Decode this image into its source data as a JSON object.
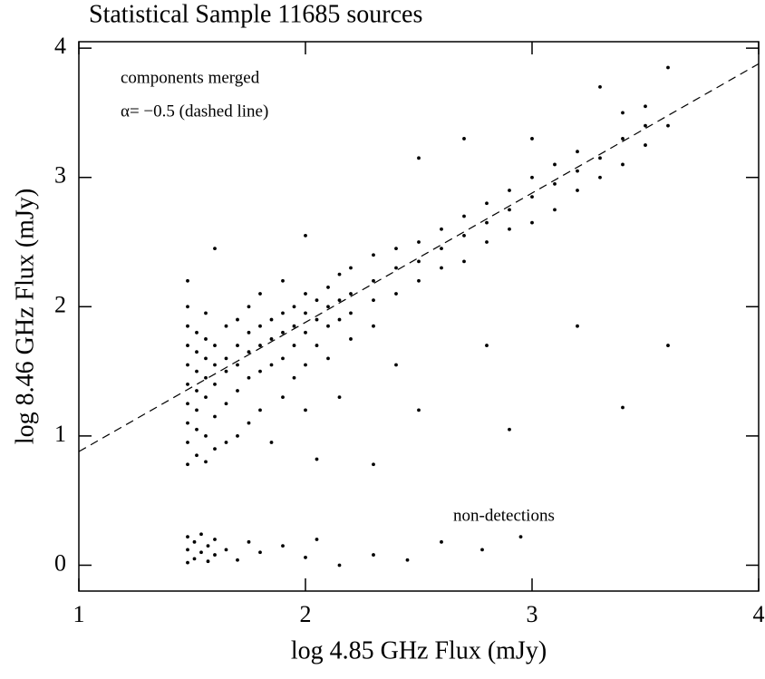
{
  "chart_data": {
    "type": "scatter",
    "title": "Statistical Sample 11685 sources",
    "x_label": "log 4.85 GHz Flux (mJy)",
    "y_label": "log 8.46 GHz Flux (mJy)",
    "annotations": [
      "components merged",
      "α= −0.5 (dashed line)",
      "non-detections"
    ],
    "xlim": [
      1,
      4
    ],
    "ylim": [
      -0.2,
      4.05
    ],
    "xticks": [
      1,
      2,
      3,
      4
    ],
    "yticks": [
      0,
      1,
      2,
      3,
      4
    ],
    "reference_line": {
      "x": [
        1,
        4
      ],
      "y": [
        0.879,
        3.879
      ],
      "color": "#000000",
      "dashed": true
    },
    "series": [
      {
        "color": "#000000",
        "x": [
          1.48,
          1.48,
          1.48,
          1.48,
          1.48,
          1.48,
          1.48,
          1.48,
          1.48,
          1.48,
          1.52,
          1.52,
          1.52,
          1.52,
          1.52,
          1.52,
          1.52,
          1.56,
          1.56,
          1.56,
          1.56,
          1.56,
          1.56,
          1.56,
          1.6,
          1.6,
          1.6,
          1.6,
          1.6,
          1.6,
          1.65,
          1.65,
          1.65,
          1.65,
          1.65,
          1.7,
          1.7,
          1.7,
          1.7,
          1.7,
          1.75,
          1.75,
          1.75,
          1.75,
          1.75,
          1.8,
          1.8,
          1.8,
          1.8,
          1.8,
          1.85,
          1.85,
          1.85,
          1.85,
          1.9,
          1.9,
          1.9,
          1.9,
          1.9,
          1.95,
          1.95,
          1.95,
          1.95,
          2.0,
          2.0,
          2.0,
          2.0,
          2.0,
          2.0,
          2.05,
          2.05,
          2.05,
          2.05,
          2.1,
          2.1,
          2.1,
          2.1,
          2.15,
          2.15,
          2.15,
          2.15,
          2.2,
          2.2,
          2.2,
          2.2,
          2.3,
          2.3,
          2.3,
          2.3,
          2.3,
          2.4,
          2.4,
          2.4,
          2.4,
          2.5,
          2.5,
          2.5,
          2.5,
          2.5,
          2.6,
          2.6,
          2.6,
          2.7,
          2.7,
          2.7,
          2.7,
          2.8,
          2.8,
          2.8,
          2.8,
          2.9,
          2.9,
          2.9,
          2.9,
          3.0,
          3.0,
          3.0,
          3.0,
          3.1,
          3.1,
          3.1,
          3.2,
          3.2,
          3.2,
          3.2,
          3.3,
          3.3,
          3.3,
          3.4,
          3.4,
          3.4,
          3.4,
          3.5,
          3.5,
          3.5,
          3.6,
          3.6,
          3.6
        ],
        "y": [
          0.78,
          0.95,
          1.1,
          1.25,
          1.4,
          1.55,
          1.7,
          1.85,
          2.0,
          2.2,
          0.85,
          1.05,
          1.2,
          1.35,
          1.5,
          1.65,
          1.8,
          0.8,
          1.0,
          1.3,
          1.45,
          1.6,
          1.75,
          1.95,
          0.9,
          1.15,
          1.4,
          1.55,
          1.7,
          2.45,
          0.95,
          1.25,
          1.5,
          1.6,
          1.85,
          1.0,
          1.35,
          1.55,
          1.7,
          1.9,
          1.1,
          1.45,
          1.65,
          1.8,
          2.0,
          1.2,
          1.5,
          1.7,
          1.85,
          2.1,
          0.95,
          1.55,
          1.75,
          1.9,
          1.3,
          1.6,
          1.8,
          1.95,
          2.2,
          1.45,
          1.7,
          1.85,
          2.0,
          1.2,
          1.55,
          1.8,
          1.95,
          2.1,
          2.55,
          0.82,
          1.7,
          1.9,
          2.05,
          1.6,
          1.85,
          2.0,
          2.15,
          1.3,
          1.9,
          2.05,
          2.25,
          1.75,
          1.95,
          2.1,
          2.3,
          0.78,
          1.85,
          2.05,
          2.2,
          2.4,
          1.55,
          2.1,
          2.3,
          2.45,
          1.2,
          2.2,
          2.35,
          2.5,
          3.15,
          2.3,
          2.45,
          2.6,
          2.35,
          2.55,
          2.7,
          3.3,
          1.7,
          2.5,
          2.65,
          2.8,
          1.05,
          2.6,
          2.75,
          2.9,
          2.65,
          2.85,
          3.0,
          3.3,
          2.75,
          2.95,
          3.1,
          1.85,
          2.9,
          3.05,
          3.2,
          3.0,
          3.15,
          3.7,
          1.22,
          3.1,
          3.3,
          3.5,
          3.25,
          3.4,
          3.55,
          1.7,
          3.4,
          3.85
        ]
      },
      {
        "color": "#000000",
        "x": [
          1.48,
          1.48,
          1.48,
          1.51,
          1.51,
          1.54,
          1.54,
          1.57,
          1.57,
          1.6,
          1.6,
          1.65,
          1.7,
          1.75,
          1.8,
          1.9,
          2.0,
          2.05,
          2.15,
          2.3,
          2.45,
          2.6,
          2.78,
          2.95
        ],
        "y": [
          0.02,
          0.12,
          0.22,
          0.05,
          0.18,
          0.1,
          0.24,
          0.03,
          0.15,
          0.08,
          0.2,
          0.12,
          0.04,
          0.18,
          0.1,
          0.15,
          0.06,
          0.2,
          0.0,
          0.08,
          0.04,
          0.18,
          0.12,
          0.22
        ]
      }
    ]
  }
}
